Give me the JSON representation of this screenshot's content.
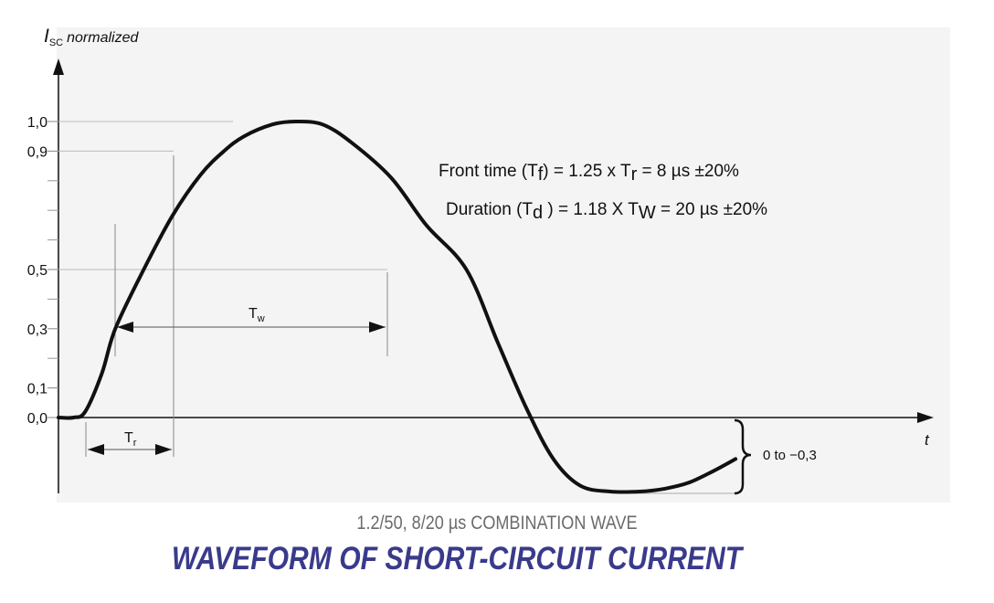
{
  "chart_data": {
    "type": "line",
    "ylabel_main": "I",
    "ylabel_sub": "SC",
    "ylabel_rest": "normalized",
    "xlabel": "t",
    "ytick_labels": [
      "1,0",
      "0,9",
      "0,5",
      "0,3",
      "0,1",
      "0,0"
    ],
    "ytick_values": [
      1.0,
      0.9,
      0.5,
      0.3,
      0.1,
      0.0
    ],
    "ylim": [
      -0.3,
      1.0
    ],
    "series": [
      {
        "x": [
          0,
          0.9,
          1.6,
          2.6,
          3.4,
          5.1,
          6.8,
          8.5,
          9.9,
          11.1,
          12.8,
          14.2,
          15.8,
          17.5,
          19.9,
          22.0,
          24.4,
          26.3,
          28.0,
          29.6,
          31.2,
          33.0,
          34.8,
          36.3,
          37.7,
          39.2,
          40.5
        ],
        "y": [
          0.0,
          0.0,
          0.02,
          0.15,
          0.3,
          0.5,
          0.68,
          0.82,
          0.9,
          0.95,
          0.99,
          1.0,
          0.99,
          0.93,
          0.81,
          0.65,
          0.5,
          0.25,
          0.03,
          -0.14,
          -0.23,
          -0.25,
          -0.25,
          -0.24,
          -0.22,
          -0.18,
          -0.14
        ]
      }
    ],
    "annotations": {
      "tw_label": "T",
      "tw_sub": "w",
      "tr_label": "T",
      "tr_sub": "r",
      "undershoot_label": "0 to −0,3"
    },
    "formula1": {
      "a": "Front time (T",
      "a_sub": "f",
      "b": ") =  1.25 x T",
      "b_sub": "r",
      "c": "  = 8 µs ±20%"
    },
    "formula2": {
      "a": "Duration (T",
      "a_sub": "d",
      "b": " ) = 1.18 X T",
      "b_sub": "W",
      "c": " = 20 µs ±20%"
    }
  },
  "caption": {
    "subtitle": "1.2/50, 8/20 µs COMBINATION WAVE",
    "title": "WAVEFORM OF SHORT-CIRCUIT CURRENT"
  }
}
